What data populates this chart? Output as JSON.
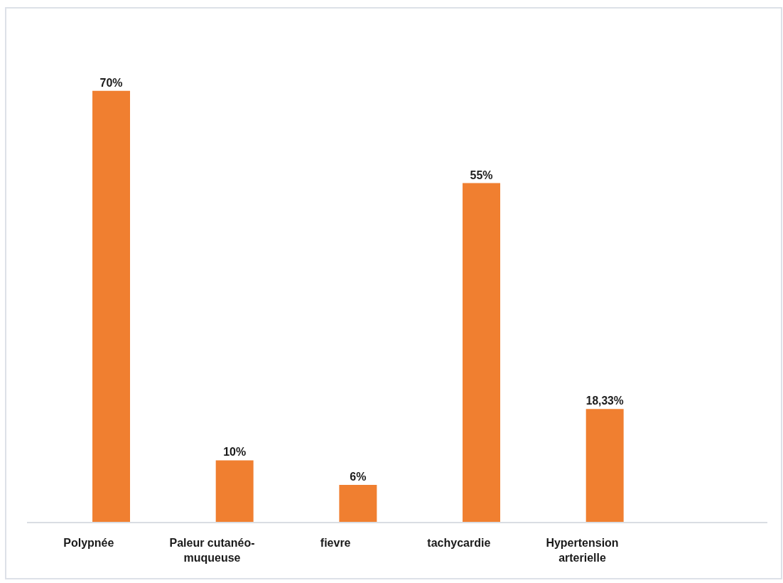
{
  "chart_data": {
    "type": "bar",
    "categories": [
      "Polypnée",
      "Paleur cutanéo-muqueuse",
      "fievre",
      "tachycardie",
      "Hypertension arterielle",
      null
    ],
    "values": [
      70,
      10,
      6,
      55,
      18.33,
      null
    ],
    "value_labels": [
      "70%",
      "10%",
      "6%",
      "55%",
      "18,33%",
      null
    ],
    "color": "#f07f30",
    "tick_labels": "x"
  }
}
